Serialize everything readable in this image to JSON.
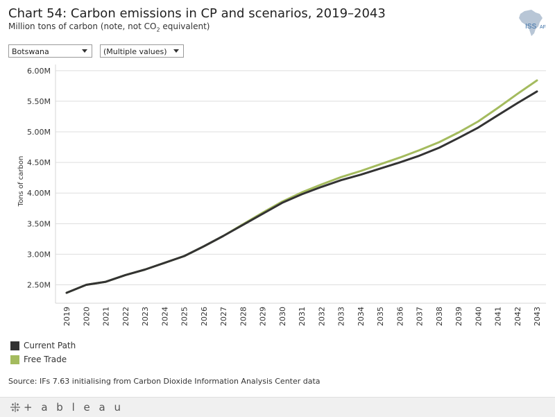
{
  "header": {
    "title": "Chart 54: Carbon emissions in CP and scenarios, 2019–2043",
    "subtitle_main": "Million tons of carbon (note, not CO",
    "subtitle_sub": "2",
    "subtitle_end": " equivalent)"
  },
  "logo": {
    "text_left": "ISS",
    "text_right": "AF"
  },
  "filters": {
    "country": "Botswana",
    "scenario": "(Multiple values)"
  },
  "chart_data": {
    "type": "line",
    "title": "Chart 54: Carbon emissions in CP and scenarios, 2019–2043",
    "ylabel": "Tons of carbon",
    "xlabel": "",
    "ylim": [
      2.2,
      6.1
    ],
    "yticks": [
      2.5,
      3.0,
      3.5,
      4.0,
      4.5,
      5.0,
      5.5,
      6.0
    ],
    "ytick_labels": [
      "2.50M",
      "3.00M",
      "3.50M",
      "4.00M",
      "4.50M",
      "5.00M",
      "5.50M",
      "6.00M"
    ],
    "x": [
      "2019",
      "2020",
      "2021",
      "2022",
      "2023",
      "2024",
      "2025",
      "2026",
      "2027",
      "2028",
      "2029",
      "2030",
      "2031",
      "2032",
      "2033",
      "2034",
      "2035",
      "2036",
      "2037",
      "2038",
      "2039",
      "2040",
      "2041",
      "2042",
      "2043"
    ],
    "series": [
      {
        "name": "Current Path",
        "color": "#333333",
        "values": [
          2.37,
          2.5,
          2.55,
          2.66,
          2.75,
          2.86,
          2.97,
          3.13,
          3.3,
          3.48,
          3.66,
          3.84,
          3.98,
          4.1,
          4.21,
          4.3,
          4.4,
          4.5,
          4.61,
          4.74,
          4.9,
          5.07,
          5.27,
          5.47,
          5.66
        ]
      },
      {
        "name": "Free Trade",
        "color": "#a4bb5e",
        "values": [
          2.37,
          2.5,
          2.55,
          2.66,
          2.75,
          2.86,
          2.97,
          3.13,
          3.3,
          3.49,
          3.68,
          3.86,
          4.01,
          4.14,
          4.26,
          4.36,
          4.47,
          4.58,
          4.7,
          4.83,
          4.99,
          5.17,
          5.39,
          5.62,
          5.84
        ]
      }
    ],
    "grid": true,
    "legend": "bottom-left"
  },
  "source": "Source: IFs 7.63 initialising from Carbon Dioxide Information Analysis Center data",
  "footer": {
    "brand": "+ a b l e a u"
  }
}
